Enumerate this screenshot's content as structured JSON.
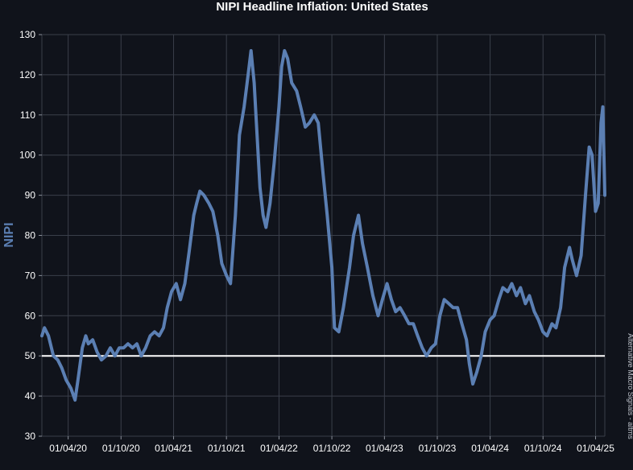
{
  "chart_data": {
    "type": "line",
    "title": "NIPI Headline Inflation: United States",
    "ylabel": "NIPI",
    "xlabel": "",
    "source": "Alternative Macro Signals - altms",
    "ylim": [
      30,
      130
    ],
    "yticks": [
      30,
      40,
      50,
      60,
      70,
      80,
      90,
      100,
      110,
      120,
      130
    ],
    "xlim": [
      "2020-01-01",
      "2025-05-03"
    ],
    "xticks": [
      {
        "date": "2020-04-01",
        "label": "01/04/20"
      },
      {
        "date": "2020-10-01",
        "label": "01/10/20"
      },
      {
        "date": "2021-04-01",
        "label": "01/04/21"
      },
      {
        "date": "2021-10-01",
        "label": "01/10/21"
      },
      {
        "date": "2022-04-01",
        "label": "01/04/22"
      },
      {
        "date": "2022-10-01",
        "label": "01/10/22"
      },
      {
        "date": "2023-04-01",
        "label": "01/04/23"
      },
      {
        "date": "2023-10-01",
        "label": "01/10/23"
      },
      {
        "date": "2024-04-01",
        "label": "01/04/24"
      },
      {
        "date": "2024-10-01",
        "label": "01/10/24"
      },
      {
        "date": "2025-04-01",
        "label": "01/04/25"
      }
    ],
    "grid": true,
    "reference_line": {
      "y": 50,
      "color": "#ffffff"
    },
    "series": [
      {
        "color": "#5b7fb3",
        "points": [
          [
            "2020-01-01",
            55
          ],
          [
            "2020-01-10",
            57
          ],
          [
            "2020-01-24",
            55
          ],
          [
            "2020-02-10",
            50
          ],
          [
            "2020-02-25",
            49
          ],
          [
            "2020-03-10",
            47
          ],
          [
            "2020-03-25",
            44
          ],
          [
            "2020-04-10",
            42
          ],
          [
            "2020-04-25",
            39
          ],
          [
            "2020-05-05",
            44
          ],
          [
            "2020-05-20",
            52
          ],
          [
            "2020-06-01",
            55
          ],
          [
            "2020-06-10",
            53
          ],
          [
            "2020-06-25",
            54
          ],
          [
            "2020-07-10",
            51
          ],
          [
            "2020-07-25",
            49
          ],
          [
            "2020-08-10",
            50
          ],
          [
            "2020-08-25",
            52
          ],
          [
            "2020-09-10",
            50
          ],
          [
            "2020-09-25",
            52
          ],
          [
            "2020-10-10",
            52
          ],
          [
            "2020-10-25",
            53
          ],
          [
            "2020-11-10",
            52
          ],
          [
            "2020-11-25",
            53
          ],
          [
            "2020-12-10",
            50
          ],
          [
            "2020-12-25",
            52
          ],
          [
            "2021-01-10",
            55
          ],
          [
            "2021-01-25",
            56
          ],
          [
            "2021-02-10",
            55
          ],
          [
            "2021-02-25",
            57
          ],
          [
            "2021-03-10",
            62
          ],
          [
            "2021-03-25",
            66
          ],
          [
            "2021-04-10",
            68
          ],
          [
            "2021-04-25",
            64
          ],
          [
            "2021-05-10",
            68
          ],
          [
            "2021-05-25",
            76
          ],
          [
            "2021-06-10",
            85
          ],
          [
            "2021-06-20",
            88
          ],
          [
            "2021-07-01",
            91
          ],
          [
            "2021-07-15",
            90
          ],
          [
            "2021-08-01",
            88
          ],
          [
            "2021-08-15",
            86
          ],
          [
            "2021-09-01",
            80
          ],
          [
            "2021-09-15",
            73
          ],
          [
            "2021-10-01",
            70
          ],
          [
            "2021-10-15",
            68
          ],
          [
            "2021-11-01",
            85
          ],
          [
            "2021-11-15",
            105
          ],
          [
            "2021-12-01",
            112
          ],
          [
            "2021-12-15",
            120
          ],
          [
            "2021-12-25",
            126
          ],
          [
            "2022-01-05",
            118
          ],
          [
            "2022-01-15",
            105
          ],
          [
            "2022-01-25",
            92
          ],
          [
            "2022-02-05",
            85
          ],
          [
            "2022-02-15",
            82
          ],
          [
            "2022-03-01",
            88
          ],
          [
            "2022-03-15",
            98
          ],
          [
            "2022-04-01",
            112
          ],
          [
            "2022-04-10",
            122
          ],
          [
            "2022-04-20",
            126
          ],
          [
            "2022-05-01",
            124
          ],
          [
            "2022-05-15",
            118
          ],
          [
            "2022-06-01",
            116
          ],
          [
            "2022-06-15",
            112
          ],
          [
            "2022-07-01",
            107
          ],
          [
            "2022-07-15",
            108
          ],
          [
            "2022-08-01",
            110
          ],
          [
            "2022-08-15",
            108
          ],
          [
            "2022-09-01",
            95
          ],
          [
            "2022-09-15",
            85
          ],
          [
            "2022-10-01",
            72
          ],
          [
            "2022-10-10",
            57
          ],
          [
            "2022-10-25",
            56
          ],
          [
            "2022-11-10",
            62
          ],
          [
            "2022-12-01",
            72
          ],
          [
            "2022-12-15",
            80
          ],
          [
            "2023-01-01",
            85
          ],
          [
            "2023-01-15",
            78
          ],
          [
            "2023-02-01",
            72
          ],
          [
            "2023-02-20",
            65
          ],
          [
            "2023-03-10",
            60
          ],
          [
            "2023-03-25",
            64
          ],
          [
            "2023-04-10",
            68
          ],
          [
            "2023-04-25",
            64
          ],
          [
            "2023-05-10",
            61
          ],
          [
            "2023-05-25",
            62
          ],
          [
            "2023-06-10",
            60
          ],
          [
            "2023-06-25",
            58
          ],
          [
            "2023-07-10",
            58
          ],
          [
            "2023-07-25",
            55
          ],
          [
            "2023-08-10",
            52
          ],
          [
            "2023-08-25",
            50
          ],
          [
            "2023-09-10",
            52
          ],
          [
            "2023-09-25",
            53
          ],
          [
            "2023-10-10",
            60
          ],
          [
            "2023-10-25",
            64
          ],
          [
            "2023-11-10",
            63
          ],
          [
            "2023-11-25",
            62
          ],
          [
            "2023-12-10",
            62
          ],
          [
            "2023-12-25",
            58
          ],
          [
            "2024-01-10",
            54
          ],
          [
            "2024-01-20",
            48
          ],
          [
            "2024-02-01",
            43
          ],
          [
            "2024-02-15",
            46
          ],
          [
            "2024-03-01",
            50
          ],
          [
            "2024-03-15",
            56
          ],
          [
            "2024-04-01",
            59
          ],
          [
            "2024-04-15",
            60
          ],
          [
            "2024-05-01",
            64
          ],
          [
            "2024-05-15",
            67
          ],
          [
            "2024-06-01",
            66
          ],
          [
            "2024-06-15",
            68
          ],
          [
            "2024-07-01",
            65
          ],
          [
            "2024-07-15",
            67
          ],
          [
            "2024-08-01",
            63
          ],
          [
            "2024-08-15",
            65
          ],
          [
            "2024-09-01",
            61
          ],
          [
            "2024-09-15",
            59
          ],
          [
            "2024-10-01",
            56
          ],
          [
            "2024-10-15",
            55
          ],
          [
            "2024-11-01",
            58
          ],
          [
            "2024-11-15",
            57
          ],
          [
            "2024-12-01",
            62
          ],
          [
            "2024-12-15",
            72
          ],
          [
            "2025-01-01",
            77
          ],
          [
            "2025-01-10",
            74
          ],
          [
            "2025-01-25",
            70
          ],
          [
            "2025-02-10",
            75
          ],
          [
            "2025-02-25",
            90
          ],
          [
            "2025-03-10",
            102
          ],
          [
            "2025-03-20",
            100
          ],
          [
            "2025-04-01",
            86
          ],
          [
            "2025-04-10",
            88
          ],
          [
            "2025-04-20",
            108
          ],
          [
            "2025-04-26",
            112
          ],
          [
            "2025-04-30",
            100
          ],
          [
            "2025-05-03",
            90
          ]
        ]
      }
    ]
  }
}
